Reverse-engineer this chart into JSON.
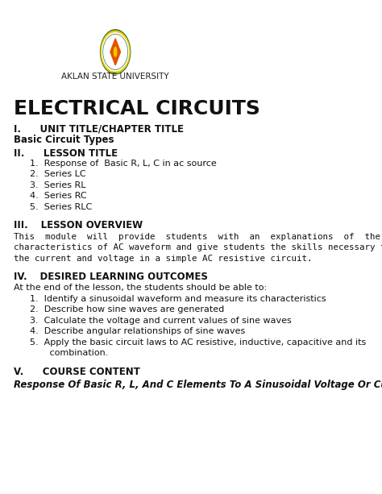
{
  "bg_color": "#ffffff",
  "university_name": "AKLAN STATE UNIVERSITY",
  "main_title": "ELECTRICAL CIRCUITS",
  "section_i_heading": "I.  UNIT TITLE/CHAPTER TITLE",
  "section_i_body": "Basic Circuit Types",
  "section_ii_heading": "II.  LESSON TITLE",
  "section_ii_items": [
    "1.  Response of  Basic R, L, C in ac source",
    "2.  Series LC",
    "3.  Series RL",
    "4.  Series RC",
    "5.  Series RLC"
  ],
  "section_iii_heading": "III.  LESSON OVERVIEW",
  "section_iii_body": "This  module  will  provide  students  with  an  explanations  of  the  specific\ncharacteristics of AC waveform and give students the skills necessary to calculate\nthe current and voltage in a simple AC resistive circuit.",
  "section_iv_heading": "IV.  DESIRED LEARNING OUTCOMES",
  "section_iv_intro": "At the end of the lesson, the students should be able to:",
  "section_iv_items": [
    "1.  Identify a sinusoidal waveform and measure its characteristics",
    "2.  Describe how sine waves are generated",
    "3.  Calculate the voltage and current values of sine waves",
    "4.  Describe angular relationships of sine waves",
    "5.  Apply the basic circuit laws to AC resistive, inductive, capacitive and its\n       combination."
  ],
  "section_v_heading": "V.  COURSE CONTENT",
  "section_v_body": "Response Of Basic R, L, And C Elements To A Sinusoidal Voltage Or Current"
}
